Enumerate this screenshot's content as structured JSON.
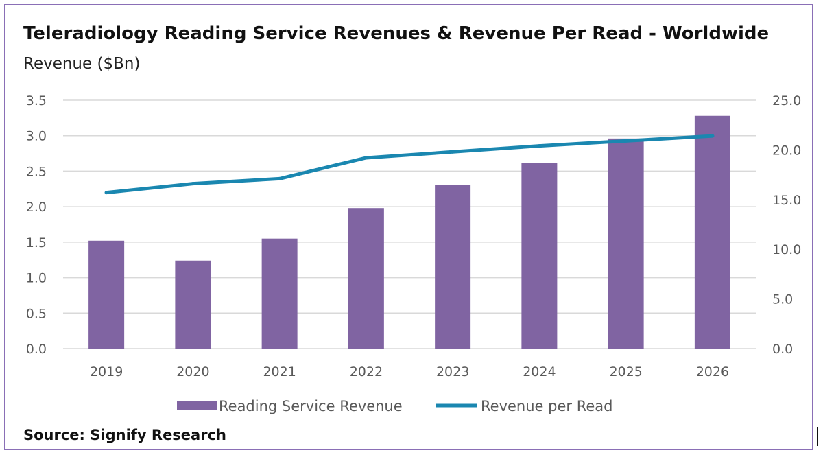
{
  "chart_data": {
    "type": "bar",
    "title": "Teleradiology Reading Service Revenues & Revenue Per Read - Worldwide",
    "subtitle": "Revenue ($Bn)",
    "categories": [
      "2019",
      "2020",
      "2021",
      "2022",
      "2023",
      "2024",
      "2025",
      "2026"
    ],
    "series": [
      {
        "name": "Reading Service Revenue",
        "type": "bar",
        "axis": "left",
        "color": "#8064a2",
        "values": [
          1.52,
          1.24,
          1.55,
          1.98,
          2.31,
          2.62,
          2.96,
          3.28
        ]
      },
      {
        "name": "Revenue per Read",
        "type": "line",
        "axis": "right",
        "color": "#1a87b0",
        "values": [
          15.7,
          16.6,
          17.1,
          19.2,
          19.8,
          20.4,
          20.9,
          21.4
        ]
      }
    ],
    "y_left": {
      "ylim": [
        0,
        3.5
      ],
      "ticks": [
        "0.0",
        "0.5",
        "1.0",
        "1.5",
        "2.0",
        "2.5",
        "3.0",
        "3.5"
      ]
    },
    "y_right": {
      "ylim": [
        0,
        25
      ],
      "ticks": [
        "0.0",
        "5.0",
        "10.0",
        "15.0",
        "20.0",
        "25.0"
      ]
    },
    "grid": true,
    "legend_position": "bottom",
    "source": "Source: Signify Research"
  }
}
